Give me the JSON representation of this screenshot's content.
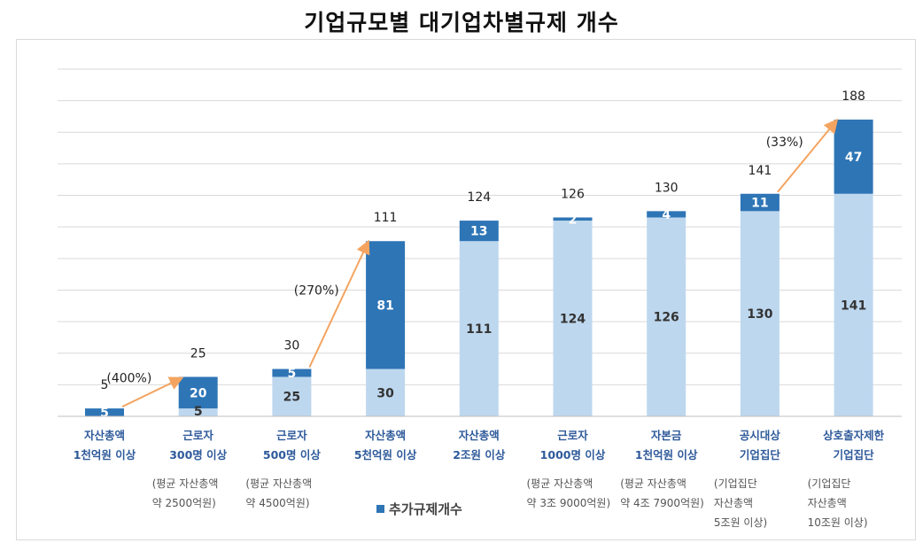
{
  "chart_data": {
    "type": "bar",
    "stacked": true,
    "title": "기업규모별 대기업차별규제 개수",
    "categories": [
      {
        "line1": "자산총액",
        "line2": "1천억원 이상",
        "note": []
      },
      {
        "line1": "근로자",
        "line2": "300명 이상",
        "note": [
          "(평균 자산총액",
          "약 2500억원)"
        ]
      },
      {
        "line1": "근로자",
        "line2": "500명 이상",
        "note": [
          "(평균 자산총액",
          "약 4500억원)"
        ]
      },
      {
        "line1": "자산총액",
        "line2": "5천억원 이상",
        "note": []
      },
      {
        "line1": "자산총액",
        "line2": "2조원 이상",
        "note": []
      },
      {
        "line1": "근로자",
        "line2": "1000명 이상",
        "note": [
          "(평균 자산총액",
          "약 3조 9000억원)"
        ]
      },
      {
        "line1": "자본금",
        "line2": "1천억원 이상",
        "note": [
          "(평균 자산총액",
          "약 4조 7900억원)"
        ]
      },
      {
        "line1": "공시대상",
        "line2": "기업집단",
        "note": [
          "(기업집단",
          "자산총액",
          "5조원 이상)"
        ]
      },
      {
        "line1": "상호출자제한",
        "line2": "기업집단",
        "note": [
          "(기업집단",
          "자산총액",
          "10조원 이상)"
        ]
      }
    ],
    "series": [
      {
        "values": [
          0,
          5,
          25,
          30,
          111,
          124,
          126,
          130,
          141
        ],
        "color": "#bdd7ee"
      },
      {
        "name": "추가규제개수",
        "values": [
          5,
          20,
          5,
          81,
          13,
          2,
          4,
          11,
          47
        ],
        "color": "#2e75b6"
      }
    ],
    "base_labels": [
      "",
      "5",
      "25",
      "30",
      "111",
      "124",
      "126",
      "130",
      "141"
    ],
    "totals": [
      5,
      25,
      30,
      111,
      124,
      126,
      130,
      141,
      188
    ],
    "annotations": [
      {
        "from": 0,
        "to": 1,
        "text": "(400%)"
      },
      {
        "from": 2,
        "to": 3,
        "text": "(270%)"
      },
      {
        "from": 7,
        "to": 8,
        "text": "(33%)"
      }
    ],
    "arrow_color": "#f4a460",
    "ylim": [
      0,
      220
    ],
    "grid": true,
    "y_axis_labels": false,
    "legend": "bottom"
  }
}
